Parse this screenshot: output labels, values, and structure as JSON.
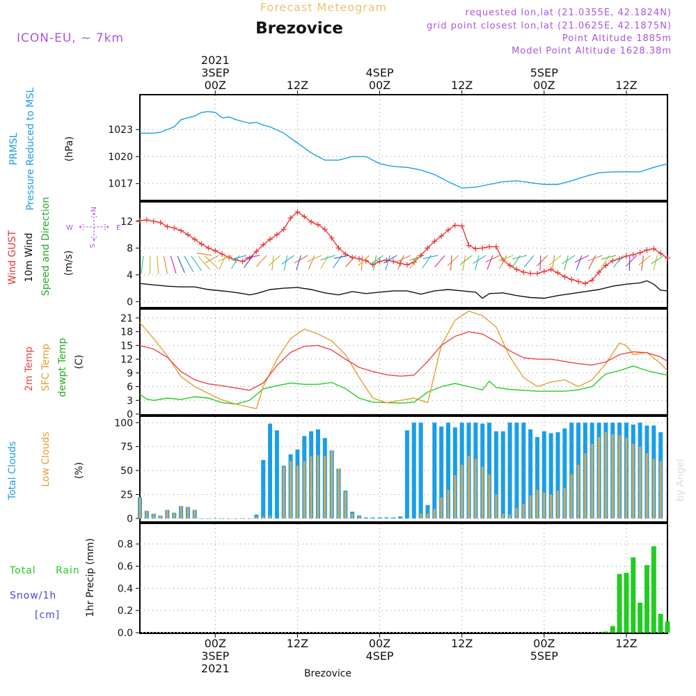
{
  "header": {
    "title": "Forecast Meteogram",
    "location": "Brezovice",
    "model": "ICON-EU, ~ 7km",
    "requested": "requested lon,lat (21.0355E, 42.1824N)",
    "grid_point": "grid point closest lon,lat (21.0625E, 42.1875N)",
    "point_altitude": "Point Altitude 1885m",
    "model_altitude": "Model Point Altitude 1628.38m",
    "footer_location": "Brezovice",
    "watermark": "by Angel"
  },
  "time_axis": {
    "ticks": [
      {
        "hour": 0,
        "line1": "00Z",
        "line2": "3SEP",
        "line3": "2021"
      },
      {
        "hour": 12,
        "line1": "12Z",
        "line2": "",
        "line3": ""
      },
      {
        "hour": 24,
        "line1": "00Z",
        "line2": "4SEP",
        "line3": ""
      },
      {
        "hour": 36,
        "line1": "12Z",
        "line2": "",
        "line3": ""
      },
      {
        "hour": 48,
        "line1": "00Z",
        "line2": "5SEP",
        "line3": ""
      },
      {
        "hour": 60,
        "line1": "12Z",
        "line2": "",
        "line3": ""
      }
    ],
    "range_hours": [
      -11,
      66
    ]
  },
  "colors": {
    "pressure": "#1a9ee8",
    "gust": "#ee3333",
    "wind": "#111111",
    "temp2m": "#ee4444",
    "sfc": "#e0a030",
    "dewpt": "#22cc22",
    "total_clouds": "#1a9ee8",
    "low_clouds": "#d4aa55",
    "rain": "#22cc22",
    "snow_label": "#4444ee",
    "header_purple": "#aa55dd",
    "title_orange": "#f0c070"
  },
  "panels": {
    "pressure": {
      "label1": "PRMSL",
      "label2": "Pressure Reduced to MSL",
      "unit": "(hPa)"
    },
    "wind": {
      "label1": "Wind GUST",
      "label2": "10m Wind",
      "label3": "Speed and Direction",
      "unit": "(m/s)",
      "compass_n": "N",
      "compass_s": "S",
      "compass_w": "W",
      "compass_e": "E"
    },
    "temp": {
      "label1": "2m Temp",
      "label2": "SFC Temp",
      "label3": "dewpt Temp",
      "unit": "(C)"
    },
    "clouds": {
      "label1": "Total Clouds",
      "label2": "Low Clouds",
      "unit": "(%)"
    },
    "precip": {
      "label1": "Total",
      "label2": "Rain",
      "label3": "Snow/1h",
      "label4": "[cm]",
      "unit": "1hr Precip (mm)"
    }
  },
  "chart_data": [
    {
      "type": "line",
      "title": "PRMSL Pressure Reduced to MSL",
      "ylabel": "(hPa)",
      "ylim": [
        1015.2,
        1026.8
      ],
      "yticks": [
        1017,
        1020,
        1023
      ],
      "series": [
        {
          "name": "PRMSL",
          "x": [
            -11,
            -9,
            -8,
            -6,
            -5,
            -3,
            -2,
            -1,
            0,
            1,
            2,
            3,
            4,
            5,
            6,
            7,
            8,
            10,
            12,
            14,
            16,
            18,
            20,
            22,
            24,
            26,
            28,
            30,
            32,
            34,
            36,
            38,
            40,
            42,
            44,
            46,
            48,
            50,
            52,
            54,
            56,
            58,
            60,
            62,
            64,
            66
          ],
          "values": [
            1022.6,
            1022.6,
            1022.7,
            1023.3,
            1024.1,
            1024.5,
            1024.9,
            1025.0,
            1024.9,
            1024.3,
            1024.4,
            1024.1,
            1023.9,
            1023.7,
            1023.8,
            1023.5,
            1023.3,
            1022.6,
            1021.5,
            1020.4,
            1019.6,
            1019.6,
            1020.0,
            1020.0,
            1019.2,
            1018.9,
            1018.8,
            1018.5,
            1018.0,
            1017.2,
            1016.5,
            1016.6,
            1016.9,
            1017.2,
            1017.3,
            1017.1,
            1016.9,
            1016.9,
            1017.3,
            1017.8,
            1018.2,
            1018.3,
            1018.3,
            1018.3,
            1018.8,
            1019.2
          ]
        }
      ]
    },
    {
      "type": "line",
      "title": "Wind GUST / 10m Wind Speed and Direction",
      "ylabel": "(m/s)",
      "ylim": [
        -0.8,
        14.8
      ],
      "yticks": [
        0,
        4,
        8,
        12
      ],
      "series": [
        {
          "name": "Wind GUST",
          "x": [
            -11,
            -10,
            -9,
            -8,
            -7,
            -6,
            -5,
            -4,
            -3,
            -2,
            -1,
            0,
            1,
            2,
            3,
            4,
            5,
            6,
            7,
            8,
            9,
            10,
            11,
            12,
            13,
            14,
            15,
            16,
            17,
            18,
            19,
            20,
            21,
            22,
            23,
            24,
            25,
            26,
            27,
            28,
            29,
            30,
            31,
            32,
            33,
            34,
            35,
            36,
            37,
            38,
            39,
            40,
            41,
            42,
            43,
            44,
            45,
            46,
            47,
            48,
            49,
            50,
            51,
            52,
            53,
            54,
            55,
            56,
            57,
            58,
            59,
            60,
            61,
            62,
            63,
            64,
            65,
            66
          ],
          "values": [
            12.1,
            12.2,
            12.0,
            11.8,
            11.2,
            11.0,
            10.6,
            10.0,
            9.3,
            8.6,
            8.0,
            7.6,
            7.1,
            6.6,
            6.2,
            6.0,
            6.5,
            7.5,
            8.5,
            9.3,
            10.0,
            10.8,
            12.5,
            13.4,
            12.7,
            11.9,
            11.5,
            10.8,
            9.5,
            8.0,
            7.1,
            6.6,
            6.4,
            6.1,
            5.5,
            6.0,
            6.2,
            6.0,
            5.7,
            5.5,
            5.9,
            6.9,
            8.0,
            9.0,
            9.8,
            10.7,
            11.4,
            11.3,
            8.4,
            7.9,
            8.0,
            8.2,
            8.2,
            6.2,
            5.4,
            4.8,
            4.4,
            4.2,
            4.2,
            4.5,
            4.8,
            4.3,
            3.7,
            3.3,
            3.0,
            2.7,
            3.2,
            4.4,
            5.4,
            6.1,
            6.4,
            6.8,
            7.0,
            7.3,
            7.7,
            7.9,
            7.2,
            6.5
          ]
        },
        {
          "name": "10m Wind",
          "x": [
            -11,
            -9,
            -7,
            -5,
            -3,
            -1,
            0,
            2,
            4,
            5,
            6,
            8,
            10,
            12,
            14,
            16,
            18,
            20,
            22,
            24,
            26,
            28,
            30,
            32,
            34,
            36,
            38,
            39,
            40,
            42,
            44,
            46,
            48,
            50,
            52,
            54,
            56,
            58,
            60,
            62,
            63,
            64,
            65,
            66
          ],
          "values": [
            2.7,
            2.5,
            2.3,
            2.2,
            2.2,
            1.8,
            1.7,
            1.5,
            1.2,
            1.0,
            1.2,
            1.8,
            2.0,
            2.1,
            1.8,
            1.3,
            1.0,
            1.5,
            1.2,
            1.4,
            1.6,
            1.6,
            1.1,
            1.6,
            1.8,
            1.6,
            1.4,
            0.5,
            1.2,
            1.3,
            0.9,
            0.6,
            0.5,
            0.9,
            1.2,
            1.5,
            1.8,
            2.3,
            2.6,
            2.8,
            3.1,
            2.6,
            1.7,
            1.6
          ]
        }
      ]
    },
    {
      "type": "line",
      "title": "2m Temp / SFC Temp / dewpt Temp",
      "ylabel": "(C)",
      "ylim": [
        0,
        22.8
      ],
      "yticks": [
        0,
        3,
        6,
        9,
        12,
        15,
        18,
        21
      ],
      "series": [
        {
          "name": "2m Temp",
          "x": [
            -11,
            -9,
            -7,
            -5,
            -3,
            -1,
            1,
            3,
            5,
            7,
            9,
            11,
            13,
            15,
            17,
            19,
            21,
            23,
            25,
            27,
            29,
            31,
            33,
            35,
            37,
            39,
            41,
            43,
            45,
            47,
            49,
            51,
            53,
            55,
            57,
            59,
            61,
            63,
            65,
            66
          ],
          "values": [
            15.0,
            14.2,
            12.4,
            9.3,
            7.5,
            6.6,
            6.2,
            5.7,
            5.2,
            6.8,
            10.6,
            13.5,
            14.8,
            15.0,
            14.0,
            12.0,
            10.2,
            9.3,
            8.6,
            8.3,
            8.5,
            11.5,
            15.0,
            17.0,
            18.0,
            17.5,
            15.8,
            13.8,
            12.3,
            12.0,
            12.0,
            11.5,
            11.0,
            10.7,
            11.4,
            13.0,
            13.6,
            13.4,
            12.5,
            11.5
          ]
        },
        {
          "name": "SFC Temp",
          "x": [
            -11,
            -9,
            -7,
            -5,
            -3,
            -1,
            1,
            3,
            5,
            6,
            7,
            9,
            11,
            13,
            15,
            17,
            19,
            21,
            23,
            25,
            27,
            29,
            31,
            33,
            35,
            37,
            39,
            41,
            43,
            45,
            47,
            49,
            51,
            53,
            55,
            57,
            59,
            60,
            61,
            63,
            65,
            66
          ],
          "values": [
            20.0,
            16.5,
            12.7,
            8.2,
            6.0,
            4.5,
            3.1,
            2.2,
            1.5,
            1.2,
            6.0,
            12.0,
            16.5,
            18.6,
            17.5,
            16.0,
            13.0,
            8.0,
            3.5,
            2.5,
            3.0,
            3.5,
            2.5,
            15.0,
            20.5,
            22.5,
            21.5,
            19.0,
            12.5,
            8.0,
            6.0,
            7.0,
            7.5,
            6.0,
            7.5,
            11.0,
            15.5,
            15.0,
            13.0,
            13.5,
            11.0,
            9.5
          ]
        },
        {
          "name": "dewpt Temp",
          "x": [
            -11,
            -10,
            -9,
            -7,
            -5,
            -3,
            -1,
            1,
            3,
            5,
            7,
            9,
            11,
            13,
            15,
            17,
            19,
            21,
            23,
            25,
            27,
            29,
            31,
            33,
            35,
            37,
            39,
            40,
            41,
            43,
            45,
            47,
            49,
            51,
            53,
            55,
            57,
            59,
            61,
            63,
            65,
            66
          ],
          "values": [
            4.3,
            3.3,
            3.0,
            3.5,
            3.2,
            3.8,
            3.5,
            2.5,
            2.2,
            3.0,
            5.5,
            6.2,
            6.8,
            6.5,
            6.5,
            6.9,
            5.6,
            3.5,
            2.6,
            2.5,
            2.4,
            2.6,
            4.8,
            6.0,
            6.7,
            6.0,
            5.3,
            7.2,
            5.8,
            5.4,
            5.2,
            5.0,
            5.0,
            5.0,
            5.3,
            6.0,
            8.8,
            9.5,
            10.5,
            9.5,
            8.8,
            8.5
          ]
        }
      ]
    },
    {
      "type": "bar",
      "title": "Total Clouds / Low Clouds",
      "ylabel": "(%)",
      "ylim": [
        -3,
        106
      ],
      "yticks": [
        0,
        25,
        50,
        75,
        100
      ],
      "start_hour": -11,
      "series": [
        {
          "name": "Total Clouds",
          "values": [
            22,
            8,
            5,
            3,
            9,
            6,
            13,
            12,
            9,
            0,
            0,
            0,
            0,
            0,
            0,
            0,
            0,
            4,
            61,
            99,
            92,
            55,
            67,
            72,
            86,
            91,
            93,
            84,
            71,
            52,
            29,
            7,
            3,
            1,
            1,
            1,
            1,
            1,
            2,
            92,
            100,
            100,
            14,
            100,
            96,
            100,
            95,
            100,
            100,
            100,
            99,
            100,
            91,
            91,
            100,
            100,
            100,
            93,
            85,
            91,
            89,
            90,
            94,
            100,
            100,
            100,
            100,
            100,
            100,
            100,
            100,
            100,
            98,
            100,
            97,
            97,
            90
          ]
        },
        {
          "name": "Low Clouds",
          "values": [
            22,
            8,
            5,
            3,
            9,
            6,
            13,
            12,
            9,
            0,
            0,
            0,
            0,
            0,
            0,
            0,
            0,
            2,
            2,
            3,
            0,
            54,
            60,
            55,
            60,
            65,
            66,
            65,
            71,
            52,
            28,
            5,
            2,
            0,
            0,
            0,
            0,
            0,
            0,
            0,
            0,
            5,
            5,
            10,
            22,
            30,
            45,
            56,
            65,
            62,
            54,
            46,
            25,
            5,
            4,
            11,
            15,
            24,
            30,
            27,
            25,
            29,
            32,
            46,
            56,
            68,
            78,
            85,
            90,
            88,
            87,
            84,
            78,
            75,
            68,
            62,
            60
          ]
        }
      ]
    },
    {
      "type": "bar",
      "title": "1hr Precip (mm)",
      "ylabel": "1hr Precip (mm)",
      "ylim": [
        0,
        0.98
      ],
      "yticks": [
        0,
        0.2,
        0.4,
        0.6,
        0.8
      ],
      "series": [
        {
          "name": "Total Rain",
          "x": [
            57,
            58,
            59,
            60,
            61,
            62,
            63,
            64,
            65,
            66
          ],
          "values": [
            0.01,
            0.06,
            0.53,
            0.54,
            0.68,
            0.27,
            0.61,
            0.78,
            0.17,
            0.1
          ]
        }
      ]
    }
  ]
}
